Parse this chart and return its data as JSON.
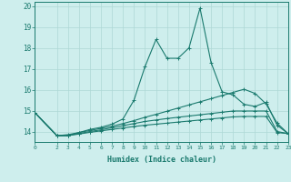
{
  "bg_color": "#ceeeed",
  "grid_color": "#aed8d5",
  "line_color": "#1a7a6e",
  "xlabel": "Humidex (Indice chaleur)",
  "xlim": [
    0,
    23
  ],
  "ylim": [
    13.5,
    20.2
  ],
  "yticks": [
    14,
    15,
    16,
    17,
    18,
    19,
    20
  ],
  "xticks": [
    0,
    2,
    3,
    4,
    5,
    6,
    7,
    8,
    9,
    10,
    11,
    12,
    13,
    14,
    15,
    16,
    17,
    18,
    19,
    20,
    21,
    22,
    23
  ],
  "series1_x": [
    0,
    2,
    3,
    4,
    5,
    6,
    7,
    8,
    9,
    10,
    11,
    12,
    13,
    14,
    15,
    16,
    17,
    18,
    19,
    20,
    21,
    22,
    23
  ],
  "series1_y": [
    14.9,
    13.8,
    13.8,
    13.95,
    14.1,
    14.2,
    14.35,
    14.6,
    15.5,
    17.1,
    18.4,
    17.5,
    17.5,
    18.0,
    19.9,
    17.3,
    15.9,
    15.75,
    15.3,
    15.2,
    15.4,
    14.3,
    13.9
  ],
  "series2_x": [
    0,
    2,
    3,
    4,
    5,
    6,
    7,
    8,
    9,
    10,
    11,
    12,
    13,
    14,
    15,
    16,
    17,
    18,
    19,
    20,
    21,
    22,
    23
  ],
  "series2_y": [
    14.9,
    13.8,
    13.85,
    13.95,
    14.05,
    14.15,
    14.25,
    14.38,
    14.52,
    14.68,
    14.82,
    14.97,
    15.12,
    15.27,
    15.42,
    15.57,
    15.72,
    15.87,
    16.02,
    15.82,
    15.32,
    14.4,
    13.9
  ],
  "series3_x": [
    0,
    2,
    3,
    4,
    5,
    6,
    7,
    8,
    9,
    10,
    11,
    12,
    13,
    14,
    15,
    16,
    17,
    18,
    19,
    20,
    21,
    22,
    23
  ],
  "series3_y": [
    14.9,
    13.8,
    13.82,
    13.9,
    14.0,
    14.08,
    14.18,
    14.28,
    14.38,
    14.48,
    14.55,
    14.62,
    14.68,
    14.74,
    14.8,
    14.86,
    14.92,
    14.98,
    14.98,
    14.98,
    14.98,
    14.0,
    13.9
  ],
  "series4_x": [
    0,
    2,
    3,
    4,
    5,
    6,
    7,
    8,
    9,
    10,
    11,
    12,
    13,
    14,
    15,
    16,
    17,
    18,
    19,
    20,
    21,
    22,
    23
  ],
  "series4_y": [
    14.9,
    13.8,
    13.8,
    13.88,
    13.96,
    14.03,
    14.1,
    14.17,
    14.24,
    14.3,
    14.35,
    14.4,
    14.45,
    14.5,
    14.55,
    14.6,
    14.65,
    14.7,
    14.72,
    14.72,
    14.72,
    13.95,
    13.9
  ]
}
